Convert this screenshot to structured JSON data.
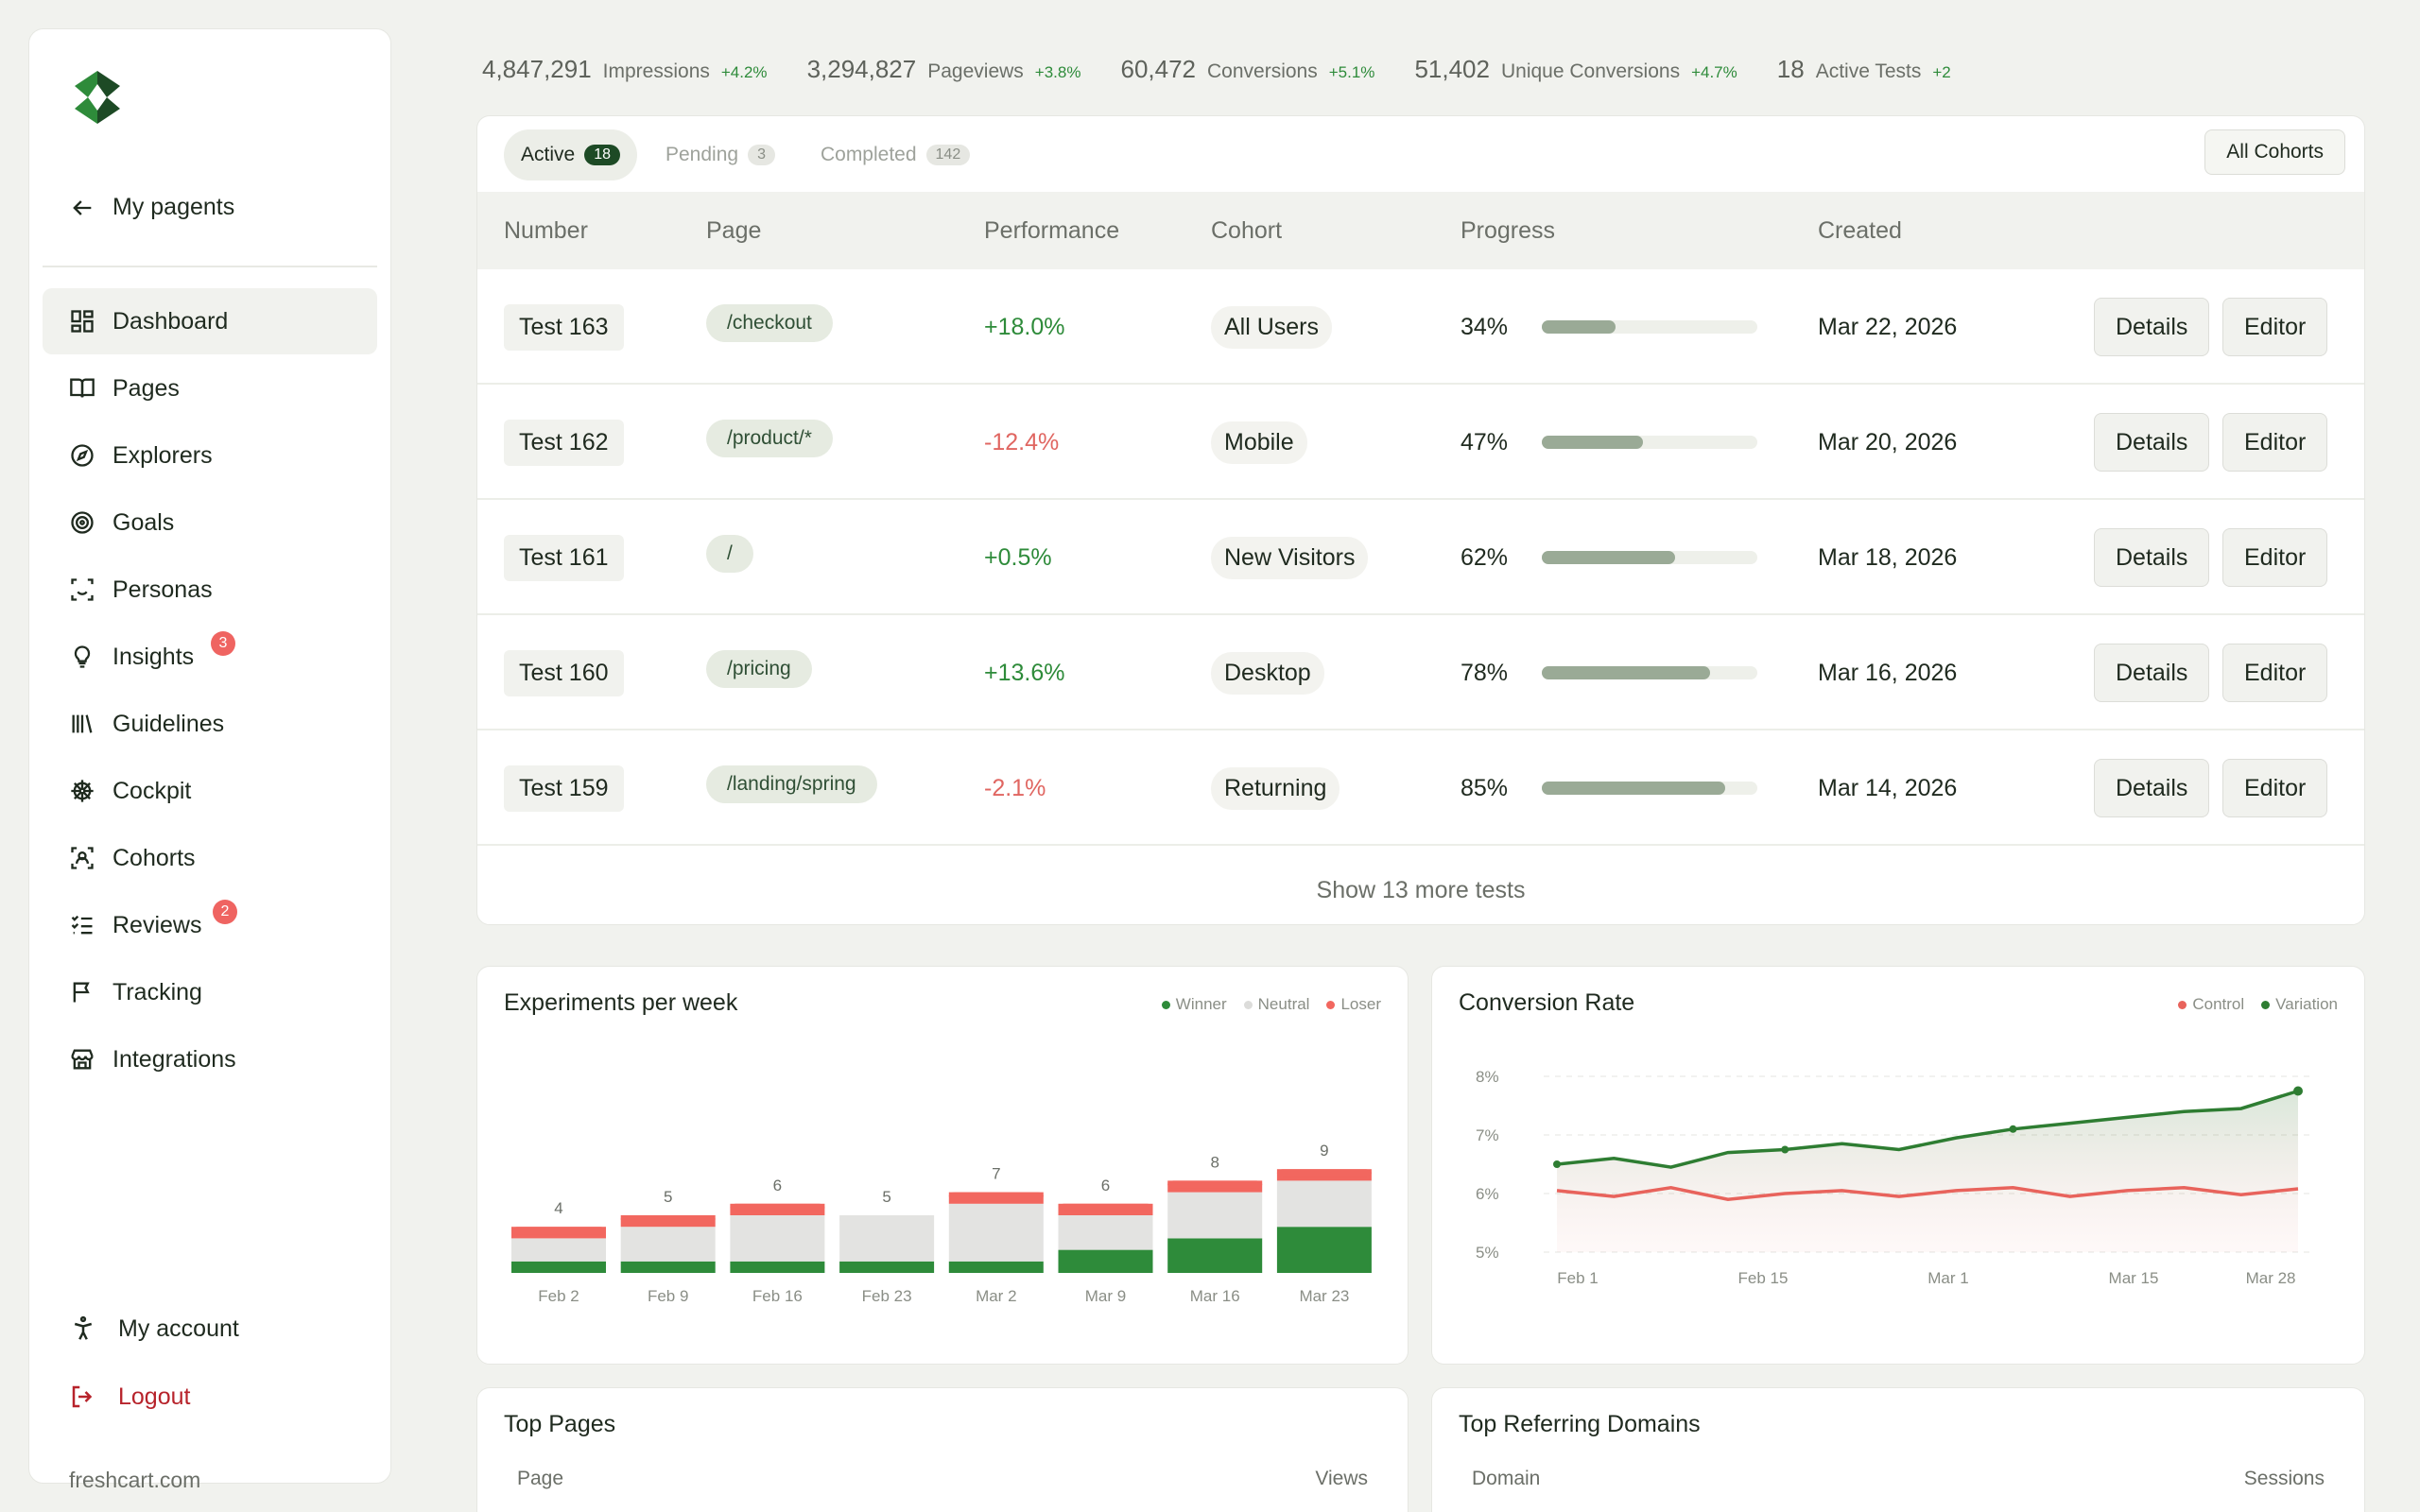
{
  "sidebar": {
    "back_label": "My pagents",
    "items": [
      {
        "label": "Dashboard",
        "icon": "dashboard-icon",
        "active": true,
        "badge": null
      },
      {
        "label": "Pages",
        "icon": "book-icon",
        "active": false,
        "badge": null
      },
      {
        "label": "Explorers",
        "icon": "compass-icon",
        "active": false,
        "badge": null
      },
      {
        "label": "Goals",
        "icon": "target-icon",
        "active": false,
        "badge": null
      },
      {
        "label": "Personas",
        "icon": "persona-scan-icon",
        "active": false,
        "badge": null
      },
      {
        "label": "Insights",
        "icon": "lightbulb-icon",
        "active": false,
        "badge": "3"
      },
      {
        "label": "Guidelines",
        "icon": "library-icon",
        "active": false,
        "badge": null
      },
      {
        "label": "Cockpit",
        "icon": "helm-icon",
        "active": false,
        "badge": null
      },
      {
        "label": "Cohorts",
        "icon": "group-scan-icon",
        "active": false,
        "badge": null
      },
      {
        "label": "Reviews",
        "icon": "checklist-icon",
        "active": false,
        "badge": "2"
      },
      {
        "label": "Tracking",
        "icon": "flag-icon",
        "active": false,
        "badge": null
      },
      {
        "label": "Integrations",
        "icon": "store-icon",
        "active": false,
        "badge": null
      }
    ],
    "account_label": "My account",
    "logout_label": "Logout",
    "domain": "freshcart.com"
  },
  "stats": [
    {
      "value": "4,847,291",
      "label": "Impressions",
      "delta": "+4.2%"
    },
    {
      "value": "3,294,827",
      "label": "Pageviews",
      "delta": "+3.8%"
    },
    {
      "value": "60,472",
      "label": "Conversions",
      "delta": "+5.1%"
    },
    {
      "value": "51,402",
      "label": "Unique Conversions",
      "delta": "+4.7%"
    },
    {
      "value": "18",
      "label": "Active Tests",
      "delta": "+2"
    }
  ],
  "tests": {
    "tabs": [
      {
        "label": "Active",
        "count": "18",
        "active": true
      },
      {
        "label": "Pending",
        "count": "3",
        "active": false
      },
      {
        "label": "Completed",
        "count": "142",
        "active": false
      }
    ],
    "cohort_filter": "All Cohorts",
    "columns": [
      "Number",
      "Page",
      "Performance",
      "Cohort",
      "Progress",
      "Created"
    ],
    "rows": [
      {
        "number": "Test 163",
        "page": "/checkout",
        "performance": "+18.0%",
        "positive": true,
        "cohort": "All Users",
        "progress_label": "34%",
        "progress": 0.34,
        "created": "Mar 22, 2026"
      },
      {
        "number": "Test 162",
        "page": "/product/*",
        "performance": "-12.4%",
        "positive": false,
        "cohort": "Mobile",
        "progress_label": "47%",
        "progress": 0.47,
        "created": "Mar 20, 2026"
      },
      {
        "number": "Test 161",
        "page": "/",
        "performance": "+0.5%",
        "positive": true,
        "cohort": "New Visitors",
        "progress_label": "62%",
        "progress": 0.62,
        "created": "Mar 18, 2026"
      },
      {
        "number": "Test 160",
        "page": "/pricing",
        "performance": "+13.6%",
        "positive": true,
        "cohort": "Desktop",
        "progress_label": "78%",
        "progress": 0.78,
        "created": "Mar 16, 2026"
      },
      {
        "number": "Test 159",
        "page": "/landing/spring",
        "performance": "-2.1%",
        "positive": false,
        "cohort": "Returning",
        "progress_label": "85%",
        "progress": 0.85,
        "created": "Mar 14, 2026"
      }
    ],
    "details_label": "Details",
    "editor_label": "Editor",
    "show_more_label": "Show 13 more tests"
  },
  "chart_data": [
    {
      "type": "bar",
      "title": "Experiments per week",
      "legend": [
        "Winner",
        "Neutral",
        "Loser"
      ],
      "legend_placement": "top-right",
      "colors": {
        "Winner": "#2e8b3a",
        "Neutral": "#e3e3e1",
        "Loser": "#f2675f"
      },
      "categories": [
        "Feb 2",
        "Feb 9",
        "Feb 16",
        "Feb 23",
        "Mar 2",
        "Mar 9",
        "Mar 16",
        "Mar 23"
      ],
      "totals": [
        4,
        5,
        6,
        5,
        7,
        6,
        8,
        9
      ],
      "series": [
        {
          "name": "Winner",
          "values": [
            0.5,
            0.5,
            0.5,
            0.5,
            0.5,
            1,
            1.5,
            2
          ]
        },
        {
          "name": "Neutral",
          "values": [
            1.0,
            1.5,
            2.0,
            2.0,
            2.5,
            1.5,
            2.0,
            2.0
          ]
        },
        {
          "name": "Loser",
          "values": [
            0.5,
            0.5,
            0.5,
            0,
            0.5,
            0.5,
            0.5,
            0.5
          ]
        }
      ]
    },
    {
      "type": "line",
      "title": "Conversion Rate",
      "legend": [
        "Control",
        "Variation"
      ],
      "legend_placement": "top-right",
      "colors": {
        "Control": "#e8635c",
        "Variation": "#2e7d32"
      },
      "y_ticks": [
        "8%",
        "7%",
        "6%",
        "5%"
      ],
      "x_ticks": [
        "Feb 1",
        "Feb 15",
        "Mar 1",
        "Mar 15",
        "Mar 28"
      ],
      "ylim": [
        5,
        8
      ],
      "grid": true,
      "series": [
        {
          "name": "Variation",
          "values": [
            6.5,
            6.6,
            6.45,
            6.7,
            6.75,
            6.85,
            6.75,
            6.95,
            7.1,
            7.2,
            7.3,
            7.4,
            7.45,
            7.75
          ]
        },
        {
          "name": "Control",
          "values": [
            6.05,
            5.95,
            6.1,
            5.9,
            6.0,
            6.05,
            5.95,
            6.05,
            6.1,
            5.95,
            6.05,
            6.1,
            5.98,
            6.08
          ]
        }
      ]
    }
  ],
  "top_pages": {
    "title": "Top Pages",
    "col_page": "Page",
    "col_views": "Views"
  },
  "top_domains": {
    "title": "Top Referring Domains",
    "col_domain": "Domain",
    "col_sessions": "Sessions"
  }
}
